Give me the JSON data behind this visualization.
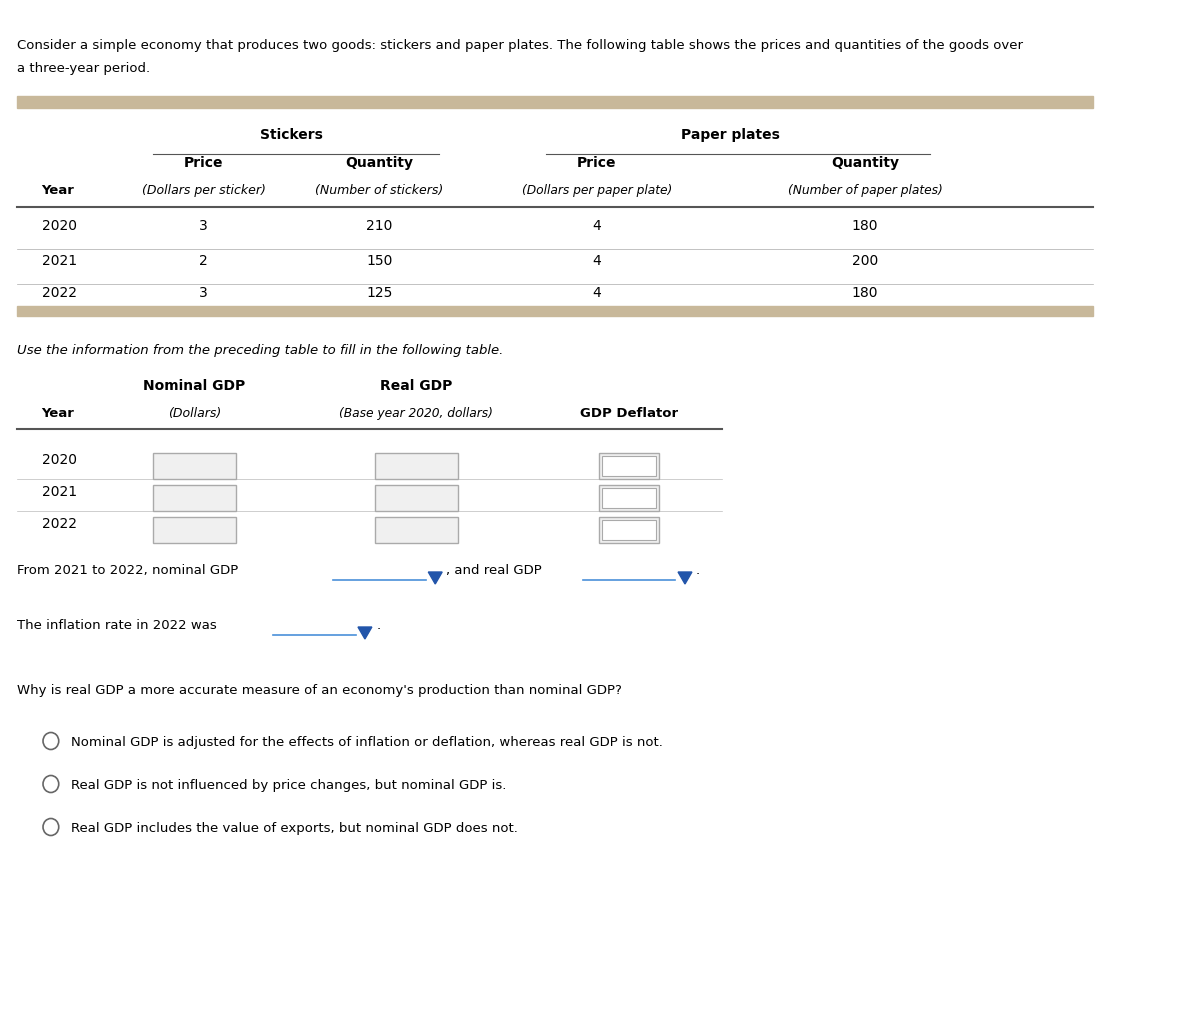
{
  "intro_text_line1": "Consider a simple economy that produces two goods: stickers and paper plates. The following table shows the prices and quantities of the goods over",
  "intro_text_line2": "a three-year period.",
  "table1": {
    "tan_color": "#C8B89A",
    "border_color": "#555555",
    "data_rows": [
      [
        "2020",
        "3",
        "210",
        "4",
        "180"
      ],
      [
        "2021",
        "2",
        "150",
        "4",
        "200"
      ],
      [
        "2022",
        "3",
        "125",
        "4",
        "180"
      ]
    ]
  },
  "instruction_text": "Use the information from the preceding table to fill in the following table.",
  "table2": {
    "years": [
      "2020",
      "2021",
      "2022"
    ],
    "border_color": "#555555",
    "box_color": "#aaaaaa",
    "box_fill": "#f0f0f0"
  },
  "dropdown_text1": "From 2021 to 2022, nominal GDP",
  "dropdown_text2": ", and real GDP",
  "dropdown_text3": ".",
  "inflation_text1": "The inflation rate in 2022 was",
  "inflation_text2": ".",
  "why_question": "Why is real GDP a more accurate measure of an economy's production than nominal GDP?",
  "radio_options": [
    "Nominal GDP is adjusted for the effects of inflation or deflation, whereas real GDP is not.",
    "Real GDP is not influenced by price changes, but nominal GDP is.",
    "Real GDP includes the value of exports, but nominal GDP does not."
  ],
  "dropdown_line_color": "#4a90d9",
  "dropdown_arrow_color": "#2255aa",
  "bg_color": "#ffffff",
  "text_color": "#000000"
}
